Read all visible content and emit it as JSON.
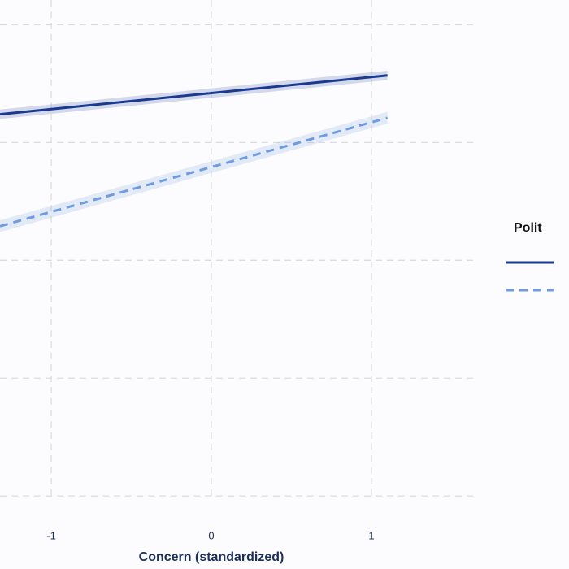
{
  "chart_data": {
    "type": "line",
    "x_label": "Concern (standardized)",
    "legend_title": "Polit",
    "xlim": [
      -1.32,
      1.65
    ],
    "xticks": [
      -1,
      0,
      1
    ],
    "ylim": [
      0.38,
      5.21
    ],
    "ygrid": [
      1,
      2,
      3,
      4,
      5
    ],
    "grid": true,
    "series": [
      {
        "color": "#1a3a8f",
        "dash": false,
        "x": [
          -1.32,
          1.1
        ],
        "values": [
          4.24,
          4.57
        ],
        "lower": [
          4.2,
          4.53
        ],
        "upper": [
          4.28,
          4.61
        ]
      },
      {
        "color": "#6f9be0",
        "dash": true,
        "x": [
          -1.32,
          1.1
        ],
        "values": [
          3.29,
          4.21
        ],
        "lower": [
          3.24,
          4.16
        ],
        "upper": [
          3.34,
          4.26
        ]
      }
    ]
  }
}
